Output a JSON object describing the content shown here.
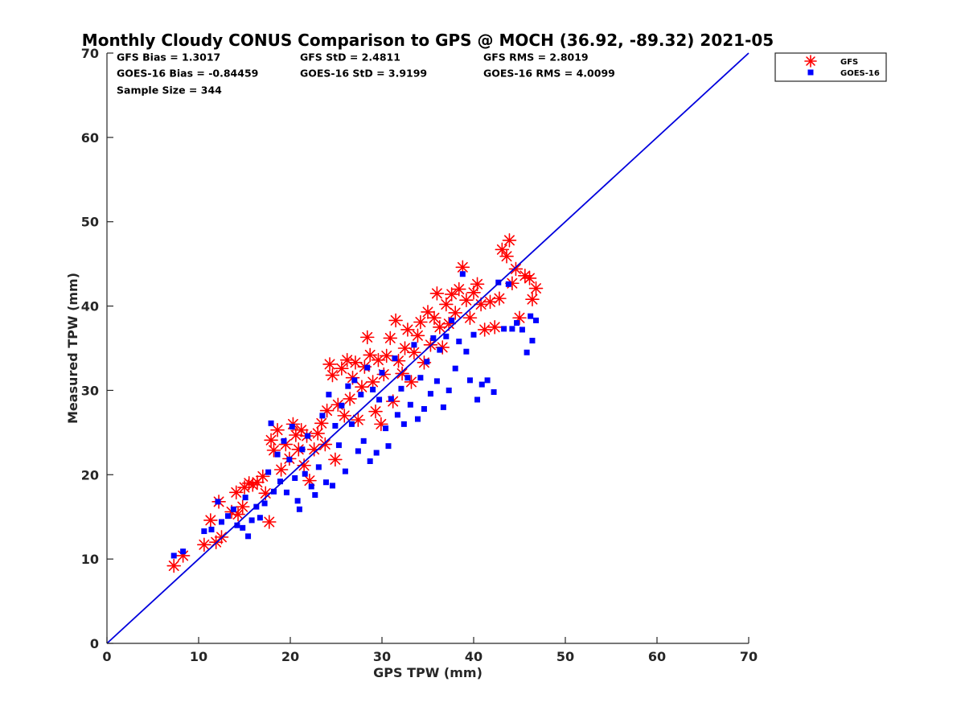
{
  "chart_data": {
    "type": "scatter",
    "title": "Monthly Cloudy CONUS Comparison to GPS @ MOCH (36.92, -89.32) 2021-05",
    "xlabel": "GPS TPW (mm)",
    "ylabel": "Measured TPW (mm)",
    "xlim": [
      0,
      70
    ],
    "ylim": [
      0,
      70
    ],
    "xticks": [
      0,
      10,
      20,
      30,
      40,
      50,
      60,
      70
    ],
    "yticks": [
      0,
      10,
      20,
      30,
      40,
      50,
      60,
      70
    ],
    "grid": false,
    "legend_position": "outside-top-right",
    "reference_line": {
      "x": [
        0,
        70
      ],
      "y": [
        0,
        70
      ],
      "color": "#0000dd"
    },
    "stats": [
      [
        "GFS Bias = 1.3017",
        "GFS StD = 2.4811",
        "GFS RMS = 2.8019"
      ],
      [
        "GOES-16 Bias = -0.84459",
        "GOES-16 StD = 3.9199",
        "GOES-16 RMS = 4.0099"
      ],
      [
        "Sample Size = 344"
      ]
    ],
    "series": [
      {
        "name": "GFS",
        "marker": "asterisk",
        "color": "#ff0000",
        "points": [
          [
            7.3,
            9.2
          ],
          [
            8.3,
            10.4
          ],
          [
            10.6,
            11.7
          ],
          [
            11.3,
            14.6
          ],
          [
            11.9,
            12.0
          ],
          [
            12.2,
            16.8
          ],
          [
            12.5,
            12.6
          ],
          [
            13.6,
            15.6
          ],
          [
            14.1,
            17.9
          ],
          [
            14.3,
            15.3
          ],
          [
            14.8,
            16.2
          ],
          [
            15.0,
            18.5
          ],
          [
            15.5,
            19.0
          ],
          [
            15.9,
            18.8
          ],
          [
            16.4,
            19.1
          ],
          [
            17.0,
            19.8
          ],
          [
            17.3,
            17.8
          ],
          [
            17.7,
            14.4
          ],
          [
            17.9,
            24.1
          ],
          [
            18.2,
            22.9
          ],
          [
            18.6,
            25.3
          ],
          [
            19.0,
            20.6
          ],
          [
            19.5,
            23.6
          ],
          [
            19.9,
            21.9
          ],
          [
            20.3,
            26.0
          ],
          [
            20.6,
            24.7
          ],
          [
            20.9,
            23.0
          ],
          [
            21.2,
            25.3
          ],
          [
            21.5,
            21.1
          ],
          [
            21.8,
            24.6
          ],
          [
            22.1,
            19.3
          ],
          [
            22.6,
            23.0
          ],
          [
            23.0,
            24.9
          ],
          [
            23.4,
            26.1
          ],
          [
            23.8,
            23.6
          ],
          [
            24.0,
            27.6
          ],
          [
            24.3,
            33.1
          ],
          [
            24.6,
            31.8
          ],
          [
            24.9,
            21.8
          ],
          [
            25.2,
            28.3
          ],
          [
            25.6,
            32.6
          ],
          [
            25.9,
            27.0
          ],
          [
            26.2,
            33.6
          ],
          [
            26.5,
            29.0
          ],
          [
            26.8,
            31.5
          ],
          [
            27.1,
            33.3
          ],
          [
            27.4,
            26.5
          ],
          [
            27.8,
            30.4
          ],
          [
            28.1,
            32.8
          ],
          [
            28.4,
            36.3
          ],
          [
            28.7,
            34.2
          ],
          [
            29.0,
            31.0
          ],
          [
            29.3,
            27.5
          ],
          [
            29.6,
            33.6
          ],
          [
            29.9,
            26.0
          ],
          [
            30.2,
            31.9
          ],
          [
            30.5,
            34.1
          ],
          [
            30.9,
            36.2
          ],
          [
            31.2,
            28.7
          ],
          [
            31.5,
            38.3
          ],
          [
            31.8,
            33.5
          ],
          [
            32.2,
            32.0
          ],
          [
            32.5,
            35.0
          ],
          [
            32.8,
            37.2
          ],
          [
            33.2,
            31.0
          ],
          [
            33.5,
            34.5
          ],
          [
            33.9,
            36.5
          ],
          [
            34.2,
            38.1
          ],
          [
            34.6,
            33.3
          ],
          [
            35.0,
            39.3
          ],
          [
            35.3,
            35.4
          ],
          [
            35.7,
            38.6
          ],
          [
            36.0,
            41.5
          ],
          [
            36.3,
            37.5
          ],
          [
            36.6,
            35.1
          ],
          [
            37.0,
            40.2
          ],
          [
            37.3,
            37.9
          ],
          [
            37.6,
            41.4
          ],
          [
            38.0,
            39.2
          ],
          [
            38.4,
            42.0
          ],
          [
            38.8,
            44.6
          ],
          [
            39.2,
            40.7
          ],
          [
            39.6,
            38.6
          ],
          [
            40.0,
            41.6
          ],
          [
            40.4,
            42.6
          ],
          [
            40.8,
            40.2
          ],
          [
            41.2,
            37.2
          ],
          [
            41.8,
            40.5
          ],
          [
            42.3,
            37.5
          ],
          [
            42.8,
            40.9
          ],
          [
            43.1,
            46.7
          ],
          [
            43.6,
            45.9
          ],
          [
            43.9,
            47.8
          ],
          [
            44.2,
            42.7
          ],
          [
            44.6,
            44.4
          ],
          [
            45.0,
            38.6
          ],
          [
            45.6,
            43.6
          ],
          [
            46.1,
            43.3
          ],
          [
            46.4,
            40.8
          ],
          [
            46.8,
            42.1
          ]
        ]
      },
      {
        "name": "GOES-16",
        "marker": "square",
        "color": "#0000ff",
        "points": [
          [
            7.3,
            10.4
          ],
          [
            8.3,
            10.9
          ],
          [
            10.6,
            13.3
          ],
          [
            11.4,
            13.5
          ],
          [
            12.1,
            16.8
          ],
          [
            12.5,
            14.4
          ],
          [
            13.2,
            15.1
          ],
          [
            13.8,
            15.9
          ],
          [
            14.2,
            14.0
          ],
          [
            14.8,
            13.7
          ],
          [
            15.1,
            17.3
          ],
          [
            15.4,
            12.7
          ],
          [
            15.8,
            14.6
          ],
          [
            16.3,
            16.2
          ],
          [
            16.7,
            14.9
          ],
          [
            17.2,
            16.6
          ],
          [
            17.6,
            20.3
          ],
          [
            17.9,
            26.1
          ],
          [
            18.2,
            18.0
          ],
          [
            18.6,
            22.4
          ],
          [
            18.9,
            19.2
          ],
          [
            19.3,
            24.0
          ],
          [
            19.6,
            17.9
          ],
          [
            19.9,
            21.8
          ],
          [
            20.2,
            25.7
          ],
          [
            20.5,
            19.6
          ],
          [
            20.8,
            16.9
          ],
          [
            21.0,
            15.9
          ],
          [
            21.3,
            23.0
          ],
          [
            21.6,
            20.1
          ],
          [
            21.9,
            24.6
          ],
          [
            22.3,
            18.6
          ],
          [
            22.7,
            17.6
          ],
          [
            23.1,
            20.9
          ],
          [
            23.5,
            27.0
          ],
          [
            23.9,
            19.1
          ],
          [
            24.2,
            29.5
          ],
          [
            24.6,
            18.7
          ],
          [
            24.9,
            25.8
          ],
          [
            25.3,
            23.5
          ],
          [
            25.6,
            28.2
          ],
          [
            26.0,
            20.4
          ],
          [
            26.3,
            30.5
          ],
          [
            26.7,
            26.0
          ],
          [
            27.0,
            31.2
          ],
          [
            27.4,
            22.8
          ],
          [
            27.7,
            29.5
          ],
          [
            28.0,
            24.0
          ],
          [
            28.4,
            32.7
          ],
          [
            28.7,
            21.6
          ],
          [
            29.0,
            30.1
          ],
          [
            29.4,
            22.6
          ],
          [
            29.7,
            28.9
          ],
          [
            30.0,
            32.1
          ],
          [
            30.4,
            25.5
          ],
          [
            30.7,
            23.4
          ],
          [
            31.0,
            29.0
          ],
          [
            31.4,
            33.8
          ],
          [
            31.7,
            27.1
          ],
          [
            32.1,
            30.2
          ],
          [
            32.4,
            26.0
          ],
          [
            32.8,
            31.5
          ],
          [
            33.1,
            28.3
          ],
          [
            33.5,
            35.4
          ],
          [
            33.9,
            26.6
          ],
          [
            34.2,
            31.5
          ],
          [
            34.6,
            27.8
          ],
          [
            34.9,
            33.4
          ],
          [
            35.3,
            29.6
          ],
          [
            35.6,
            36.2
          ],
          [
            36.0,
            31.1
          ],
          [
            36.3,
            34.8
          ],
          [
            36.7,
            28.0
          ],
          [
            37.0,
            36.4
          ],
          [
            37.3,
            30.0
          ],
          [
            37.6,
            38.3
          ],
          [
            38.0,
            32.6
          ],
          [
            38.4,
            35.8
          ],
          [
            38.8,
            43.8
          ],
          [
            39.2,
            34.6
          ],
          [
            39.6,
            31.2
          ],
          [
            40.0,
            36.6
          ],
          [
            40.4,
            28.9
          ],
          [
            40.9,
            30.7
          ],
          [
            41.5,
            31.2
          ],
          [
            42.2,
            29.8
          ],
          [
            42.7,
            42.8
          ],
          [
            43.3,
            37.3
          ],
          [
            43.8,
            42.6
          ],
          [
            44.2,
            37.3
          ],
          [
            44.7,
            38.0
          ],
          [
            45.3,
            37.2
          ],
          [
            45.8,
            34.5
          ],
          [
            46.2,
            38.8
          ],
          [
            46.4,
            35.9
          ],
          [
            46.8,
            38.3
          ]
        ]
      }
    ]
  }
}
